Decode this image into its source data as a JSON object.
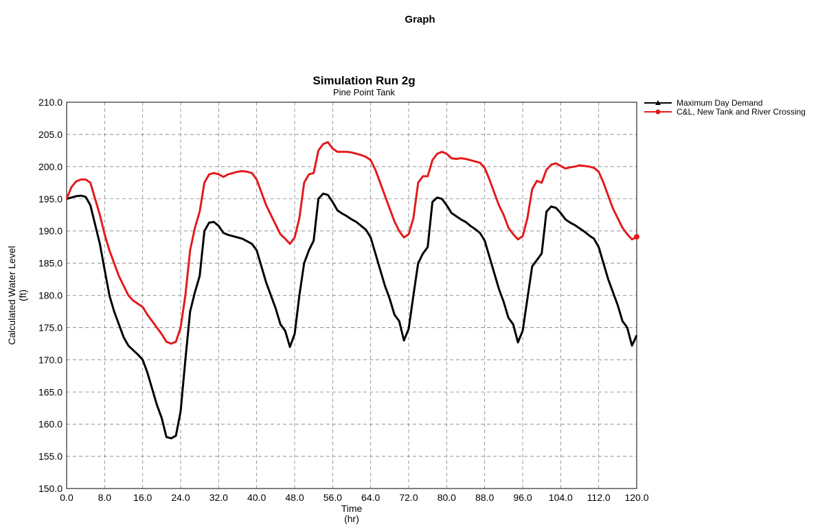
{
  "page": {
    "header": "Graph"
  },
  "chart_data": {
    "type": "line",
    "title": "Simulation Run 2g",
    "subtitle": "Pine Point Tank",
    "xlabel": "Time",
    "xunit": "(hr)",
    "ylabel": "Calculated Water Level",
    "yunit": "(ft)",
    "xlim": [
      0,
      120
    ],
    "ylim": [
      150,
      210
    ],
    "xticks": [
      "0.0",
      "8.0",
      "16.0",
      "24.0",
      "32.0",
      "40.0",
      "48.0",
      "56.0",
      "64.0",
      "72.0",
      "80.0",
      "88.0",
      "96.0",
      "104.0",
      "112.0",
      "120.0"
    ],
    "yticks": [
      "150.0",
      "155.0",
      "160.0",
      "165.0",
      "170.0",
      "175.0",
      "180.0",
      "185.0",
      "190.0",
      "195.0",
      "200.0",
      "205.0",
      "210.0"
    ],
    "grid": true,
    "grid_style": "dashed",
    "legend_position": "top-right, outside plot",
    "series": [
      {
        "name": "Maximum Day Demand",
        "color": "#000000",
        "marker": "triangle",
        "points": [
          [
            0,
            195.0
          ],
          [
            1,
            195.2
          ],
          [
            2,
            195.4
          ],
          [
            3,
            195.5
          ],
          [
            4,
            195.3
          ],
          [
            5,
            194.0
          ],
          [
            6,
            191.0
          ],
          [
            7,
            188.0
          ],
          [
            8,
            184.0
          ],
          [
            9,
            180.0
          ],
          [
            10,
            177.5
          ],
          [
            11,
            175.5
          ],
          [
            12,
            173.5
          ],
          [
            13,
            172.2
          ],
          [
            14,
            171.5
          ],
          [
            15,
            170.8
          ],
          [
            16,
            170.0
          ],
          [
            17,
            168.0
          ],
          [
            18,
            165.5
          ],
          [
            19,
            163.0
          ],
          [
            20,
            161.0
          ],
          [
            21,
            158.0
          ],
          [
            22,
            157.8
          ],
          [
            23,
            158.2
          ],
          [
            24,
            162.0
          ],
          [
            25,
            170.0
          ],
          [
            26,
            177.5
          ],
          [
            27,
            180.5
          ],
          [
            28,
            183.0
          ],
          [
            29,
            190.0
          ],
          [
            30,
            191.3
          ],
          [
            31,
            191.4
          ],
          [
            32,
            190.8
          ],
          [
            33,
            189.7
          ],
          [
            34,
            189.4
          ],
          [
            35,
            189.2
          ],
          [
            36,
            189.0
          ],
          [
            37,
            188.8
          ],
          [
            38,
            188.4
          ],
          [
            39,
            188.0
          ],
          [
            40,
            187.0
          ],
          [
            41,
            184.5
          ],
          [
            42,
            182.0
          ],
          [
            43,
            180.0
          ],
          [
            44,
            178.0
          ],
          [
            45,
            175.5
          ],
          [
            46,
            174.5
          ],
          [
            47,
            172.0
          ],
          [
            48,
            174.0
          ],
          [
            49,
            180.0
          ],
          [
            50,
            185.0
          ],
          [
            51,
            187.0
          ],
          [
            52,
            188.5
          ],
          [
            53,
            195.0
          ],
          [
            54,
            195.8
          ],
          [
            55,
            195.6
          ],
          [
            56,
            194.5
          ],
          [
            57,
            193.2
          ],
          [
            58,
            192.7
          ],
          [
            59,
            192.3
          ],
          [
            60,
            191.8
          ],
          [
            61,
            191.4
          ],
          [
            62,
            190.8
          ],
          [
            63,
            190.2
          ],
          [
            64,
            189.0
          ],
          [
            65,
            186.5
          ],
          [
            66,
            184.0
          ],
          [
            67,
            181.5
          ],
          [
            68,
            179.5
          ],
          [
            69,
            177.0
          ],
          [
            70,
            176.0
          ],
          [
            71,
            173.0
          ],
          [
            72,
            174.8
          ],
          [
            73,
            180.0
          ],
          [
            74,
            185.0
          ],
          [
            75,
            186.5
          ],
          [
            76,
            187.5
          ],
          [
            77,
            194.5
          ],
          [
            78,
            195.2
          ],
          [
            79,
            195.0
          ],
          [
            80,
            194.0
          ],
          [
            81,
            192.8
          ],
          [
            82,
            192.3
          ],
          [
            83,
            191.8
          ],
          [
            84,
            191.4
          ],
          [
            85,
            190.8
          ],
          [
            86,
            190.3
          ],
          [
            87,
            189.7
          ],
          [
            88,
            188.5
          ],
          [
            89,
            186.0
          ],
          [
            90,
            183.5
          ],
          [
            91,
            181.0
          ],
          [
            92,
            179.0
          ],
          [
            93,
            176.5
          ],
          [
            94,
            175.5
          ],
          [
            95,
            172.7
          ],
          [
            96,
            174.5
          ],
          [
            97,
            179.5
          ],
          [
            98,
            184.5
          ],
          [
            99,
            185.5
          ],
          [
            100,
            186.5
          ],
          [
            101,
            193.0
          ],
          [
            102,
            193.8
          ],
          [
            103,
            193.6
          ],
          [
            104,
            192.8
          ],
          [
            105,
            191.8
          ],
          [
            106,
            191.3
          ],
          [
            107,
            190.9
          ],
          [
            108,
            190.4
          ],
          [
            109,
            189.9
          ],
          [
            110,
            189.3
          ],
          [
            111,
            188.8
          ],
          [
            112,
            187.5
          ],
          [
            113,
            185.0
          ],
          [
            114,
            182.5
          ],
          [
            115,
            180.5
          ],
          [
            116,
            178.5
          ],
          [
            117,
            176.0
          ],
          [
            118,
            175.0
          ],
          [
            119,
            172.2
          ],
          [
            120,
            173.8
          ]
        ]
      },
      {
        "name": "C&L, New Tank and River Crossing",
        "color": "#e31a1c",
        "marker": "circle",
        "points": [
          [
            0,
            195.0
          ],
          [
            1,
            196.8
          ],
          [
            2,
            197.7
          ],
          [
            3,
            198.0
          ],
          [
            4,
            198.0
          ],
          [
            5,
            197.5
          ],
          [
            6,
            195.0
          ],
          [
            7,
            192.5
          ],
          [
            8,
            189.5
          ],
          [
            9,
            187.0
          ],
          [
            10,
            185.0
          ],
          [
            11,
            183.0
          ],
          [
            12,
            181.5
          ],
          [
            13,
            180.0
          ],
          [
            14,
            179.2
          ],
          [
            15,
            178.7
          ],
          [
            16,
            178.2
          ],
          [
            17,
            177.0
          ],
          [
            18,
            176.0
          ],
          [
            19,
            175.0
          ],
          [
            20,
            174.0
          ],
          [
            21,
            172.8
          ],
          [
            22,
            172.5
          ],
          [
            23,
            172.8
          ],
          [
            24,
            175.0
          ],
          [
            25,
            180.0
          ],
          [
            26,
            187.0
          ],
          [
            27,
            190.5
          ],
          [
            28,
            193.0
          ],
          [
            29,
            197.5
          ],
          [
            30,
            198.8
          ],
          [
            31,
            199.0
          ],
          [
            32,
            198.8
          ],
          [
            33,
            198.4
          ],
          [
            34,
            198.8
          ],
          [
            35,
            199.0
          ],
          [
            36,
            199.2
          ],
          [
            37,
            199.3
          ],
          [
            38,
            199.2
          ],
          [
            39,
            199.0
          ],
          [
            40,
            198.0
          ],
          [
            41,
            196.0
          ],
          [
            42,
            194.0
          ],
          [
            43,
            192.5
          ],
          [
            44,
            191.0
          ],
          [
            45,
            189.5
          ],
          [
            46,
            188.8
          ],
          [
            47,
            188.0
          ],
          [
            48,
            189.0
          ],
          [
            49,
            192.0
          ],
          [
            50,
            197.5
          ],
          [
            51,
            198.8
          ],
          [
            52,
            199.0
          ],
          [
            53,
            202.5
          ],
          [
            54,
            203.5
          ],
          [
            55,
            203.8
          ],
          [
            56,
            202.8
          ],
          [
            57,
            202.3
          ],
          [
            58,
            202.3
          ],
          [
            59,
            202.3
          ],
          [
            60,
            202.2
          ],
          [
            61,
            202.0
          ],
          [
            62,
            201.8
          ],
          [
            63,
            201.5
          ],
          [
            64,
            201.0
          ],
          [
            65,
            199.5
          ],
          [
            66,
            197.5
          ],
          [
            67,
            195.5
          ],
          [
            68,
            193.5
          ],
          [
            69,
            191.5
          ],
          [
            70,
            190.0
          ],
          [
            71,
            189.0
          ],
          [
            72,
            189.5
          ],
          [
            73,
            192.0
          ],
          [
            74,
            197.5
          ],
          [
            75,
            198.5
          ],
          [
            76,
            198.5
          ],
          [
            77,
            201.0
          ],
          [
            78,
            202.0
          ],
          [
            79,
            202.3
          ],
          [
            80,
            202.0
          ],
          [
            81,
            201.3
          ],
          [
            82,
            201.2
          ],
          [
            83,
            201.3
          ],
          [
            84,
            201.2
          ],
          [
            85,
            201.0
          ],
          [
            86,
            200.8
          ],
          [
            87,
            200.6
          ],
          [
            88,
            199.8
          ],
          [
            89,
            198.0
          ],
          [
            90,
            196.0
          ],
          [
            91,
            194.0
          ],
          [
            92,
            192.5
          ],
          [
            93,
            190.5
          ],
          [
            94,
            189.5
          ],
          [
            95,
            188.7
          ],
          [
            96,
            189.2
          ],
          [
            97,
            192.0
          ],
          [
            98,
            196.5
          ],
          [
            99,
            197.8
          ],
          [
            100,
            197.5
          ],
          [
            101,
            199.5
          ],
          [
            102,
            200.3
          ],
          [
            103,
            200.5
          ],
          [
            104,
            200.1
          ],
          [
            105,
            199.7
          ],
          [
            106,
            199.9
          ],
          [
            107,
            200.0
          ],
          [
            108,
            200.2
          ],
          [
            109,
            200.1
          ],
          [
            110,
            200.0
          ],
          [
            111,
            199.8
          ],
          [
            112,
            199.2
          ],
          [
            113,
            197.5
          ],
          [
            114,
            195.5
          ],
          [
            115,
            193.5
          ],
          [
            116,
            192.0
          ],
          [
            117,
            190.5
          ],
          [
            118,
            189.5
          ],
          [
            119,
            188.7
          ],
          [
            120,
            189.1
          ]
        ]
      }
    ]
  }
}
